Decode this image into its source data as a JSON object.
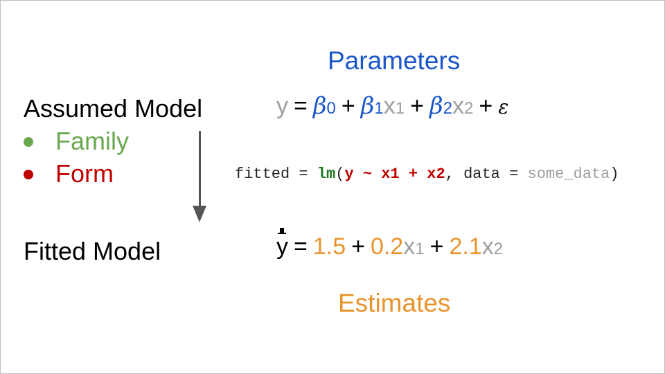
{
  "titles": {
    "parameters": "Parameters",
    "estimates": "Estimates"
  },
  "left": {
    "assumed_model": "Assumed Model",
    "bullets": [
      {
        "label": "Family",
        "color": "#6aa84f"
      },
      {
        "label": "Form",
        "color": "#c00000"
      }
    ],
    "fitted_model": "Fitted Model"
  },
  "equation_assumed": {
    "y": "y",
    "eq": "=",
    "b0": "β",
    "sub0": "0",
    "plus1": "+",
    "b1": "β",
    "sub1": "1",
    "x1": "x",
    "x1sub": "1",
    "plus2": "+",
    "b2": "β",
    "sub2": "2",
    "x2": "x",
    "x2sub": "2",
    "plus3": "+",
    "eps": "ε"
  },
  "code": {
    "lhs": "fitted = ",
    "fn": "lm",
    "open": "(",
    "formula": "y ~ x1 + x2",
    "mid": ", data = ",
    "arg": "some_data",
    "close": ")"
  },
  "equation_fitted": {
    "y": "y",
    "eq": "=",
    "c0": "1.5",
    "plus1": "+",
    "c1": "0.2",
    "x1": "x",
    "x1sub": "1",
    "plus2": "+",
    "c2": "2.1",
    "x2": "x",
    "x2sub": "2"
  },
  "colors": {
    "parameters": "#1a56c9",
    "estimates": "#e8942c",
    "gray": "#9e9e9e"
  },
  "icons": {
    "hat": "top-hat-icon",
    "arrow": "down-arrow-icon"
  }
}
